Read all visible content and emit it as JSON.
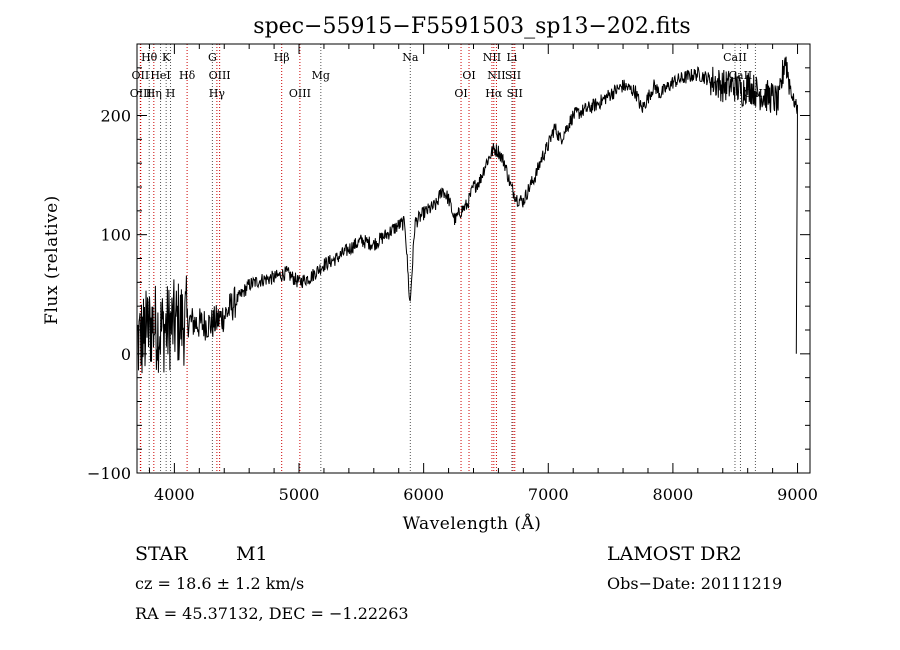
{
  "chart_data": {
    "type": "line",
    "title": "spec−55915−F5591503_sp13−202.fits",
    "xlabel": "Wavelength (Å)",
    "ylabel": "Flux (relative)",
    "xlim": [
      3700,
      9100
    ],
    "ylim": [
      -100,
      260
    ],
    "xticks": [
      4000,
      5000,
      6000,
      7000,
      8000,
      9000
    ],
    "yticks": [
      -100,
      0,
      100,
      200
    ],
    "grid": false,
    "line_color": "#000000",
    "marker_color": "#cc0000",
    "spectrum_anchors": {
      "wavelength": [
        3700,
        3760,
        3820,
        3900,
        4000,
        4100,
        4200,
        4300,
        4400,
        4500,
        4600,
        4700,
        4800,
        4900,
        5000,
        5100,
        5200,
        5300,
        5400,
        5500,
        5600,
        5700,
        5800,
        5850,
        5890,
        5930,
        6000,
        6100,
        6150,
        6200,
        6250,
        6300,
        6350,
        6400,
        6450,
        6500,
        6563,
        6600,
        6650,
        6700,
        6750,
        6800,
        6850,
        6900,
        6950,
        7000,
        7050,
        7100,
        7200,
        7300,
        7400,
        7500,
        7600,
        7700,
        7750,
        7800,
        7850,
        7900,
        8000,
        8100,
        8200,
        8300,
        8400,
        8500,
        8550,
        8600,
        8700,
        8800,
        8850,
        8900,
        8930,
        8960,
        9000
      ],
      "flux": [
        10,
        15,
        25,
        20,
        25,
        28,
        25,
        25,
        32,
        45,
        58,
        62,
        64,
        68,
        60,
        65,
        75,
        80,
        88,
        95,
        92,
        100,
        108,
        110,
        40,
        110,
        118,
        125,
        138,
        130,
        112,
        120,
        125,
        140,
        145,
        160,
        172,
        170,
        160,
        140,
        130,
        128,
        140,
        150,
        165,
        175,
        190,
        180,
        200,
        205,
        210,
        218,
        225,
        220,
        205,
        215,
        225,
        218,
        228,
        232,
        235,
        230,
        225,
        225,
        220,
        225,
        218,
        215,
        210,
        250,
        230,
        215,
        205
      ]
    },
    "lines": [
      {
        "name": "Hθ",
        "wavelength": 3798,
        "row": 0,
        "color": "black"
      },
      {
        "name": "K",
        "wavelength": 3934,
        "row": 0,
        "color": "black"
      },
      {
        "name": "G",
        "wavelength": 4305,
        "row": 0,
        "color": "black"
      },
      {
        "name": "Hβ",
        "wavelength": 4861,
        "row": 0,
        "color": "red"
      },
      {
        "name": "Na",
        "wavelength": 5893,
        "row": 0,
        "color": "black"
      },
      {
        "name": "NII",
        "wavelength": 6548,
        "row": 0,
        "color": "red"
      },
      {
        "name": "Li",
        "wavelength": 6708,
        "row": 0,
        "color": "black"
      },
      {
        "name": "CaII",
        "wavelength": 8498,
        "row": 0,
        "color": "black"
      },
      {
        "name": "OII",
        "wavelength": 3727,
        "row": 1,
        "color": "red"
      },
      {
        "name": "HeI",
        "wavelength": 3889,
        "row": 1,
        "color": "black"
      },
      {
        "name": "Hδ",
        "wavelength": 4102,
        "row": 1,
        "color": "red"
      },
      {
        "name": "OIII",
        "wavelength": 4363,
        "row": 1,
        "color": "red"
      },
      {
        "name": "Mg",
        "wavelength": 5175,
        "row": 1,
        "color": "black"
      },
      {
        "name": "OI",
        "wavelength": 6364,
        "row": 1,
        "color": "red"
      },
      {
        "name": "NII",
        "wavelength": 6584,
        "row": 1,
        "color": "red"
      },
      {
        "name": "SII",
        "wavelength": 6717,
        "row": 1,
        "color": "red"
      },
      {
        "name": "CaII",
        "wavelength": 8542,
        "row": 1,
        "color": "black"
      },
      {
        "name": "OIII",
        "wavelength": 3730,
        "row": 2,
        "color": "red"
      },
      {
        "name": "Hη",
        "wavelength": 3835,
        "row": 2,
        "color": "red"
      },
      {
        "name": "H",
        "wavelength": 3969,
        "row": 2,
        "color": "black"
      },
      {
        "name": "Hγ",
        "wavelength": 4341,
        "row": 2,
        "color": "red"
      },
      {
        "name": "OIII",
        "wavelength": 5007,
        "row": 2,
        "color": "red"
      },
      {
        "name": "OI",
        "wavelength": 6300,
        "row": 2,
        "color": "red"
      },
      {
        "name": "Hα",
        "wavelength": 6563,
        "row": 2,
        "color": "red"
      },
      {
        "name": "SII",
        "wavelength": 6731,
        "row": 2,
        "color": "red"
      },
      {
        "name": "CaII",
        "wavelength": 8662,
        "row": 2,
        "color": "black"
      }
    ]
  },
  "info": {
    "object_class": "STAR",
    "subclass": "M1",
    "redshift": "cz = 18.6 ± 1.2 km/s",
    "coords": "RA =  45.37132, DEC =  −1.22263",
    "survey": "LAMOST  DR2",
    "obs_date": "Obs−Date: 20111219"
  }
}
